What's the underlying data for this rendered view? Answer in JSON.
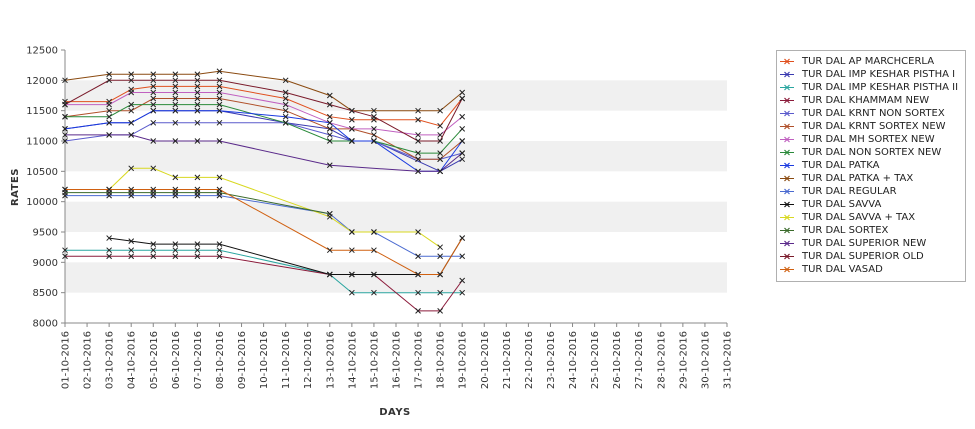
{
  "chart_data": {
    "type": "line",
    "title": "",
    "xlabel": "DAYS",
    "ylabel": "RATES",
    "ylim": [
      8000,
      12500
    ],
    "y_ticks": [
      8000,
      8500,
      9000,
      9500,
      10000,
      10500,
      11000,
      11500,
      12000,
      12500
    ],
    "grid": "alternating horizontal bands",
    "legend_position": "right",
    "categories": [
      "01-10-2016",
      "02-10-2016",
      "03-10-2016",
      "04-10-2016",
      "05-10-2016",
      "06-10-2016",
      "07-10-2016",
      "08-10-2016",
      "09-10-2016",
      "10-10-2016",
      "11-10-2016",
      "12-10-2016",
      "13-10-2016",
      "14-10-2016",
      "15-10-2016",
      "16-10-2016",
      "17-10-2016",
      "18-10-2016",
      "19-10-2016",
      "20-10-2016",
      "21-10-2016",
      "22-10-2016",
      "23-10-2016",
      "24-10-2016",
      "25-10-2016",
      "26-10-2016",
      "27-10-2016",
      "28-10-2016",
      "29-10-2016",
      "30-10-2016",
      "31-10-2016"
    ],
    "series": [
      {
        "name": "TUR DAL AP MARCHCERLA",
        "color": "#e0501e",
        "points": [
          [
            0,
            11650
          ],
          [
            2,
            11650
          ],
          [
            3,
            11850
          ],
          [
            4,
            11900
          ],
          [
            5,
            11900
          ],
          [
            6,
            11900
          ],
          [
            7,
            11900
          ],
          [
            10,
            11700
          ],
          [
            12,
            11400
          ],
          [
            13,
            11350
          ],
          [
            14,
            11350
          ],
          [
            16,
            11350
          ],
          [
            17,
            11250
          ],
          [
            18,
            11700
          ]
        ]
      },
      {
        "name": "TUR DAL IMP KESHAR PISTHA I",
        "color": "#3a3ab0",
        "points": [
          [
            0,
            11200
          ],
          [
            2,
            11300
          ],
          [
            3,
            11300
          ],
          [
            4,
            11500
          ],
          [
            5,
            11500
          ],
          [
            6,
            11500
          ],
          [
            7,
            11500
          ],
          [
            10,
            11300
          ],
          [
            12,
            11200
          ],
          [
            13,
            11000
          ],
          [
            14,
            11000
          ],
          [
            17,
            10500
          ],
          [
            18,
            10700
          ]
        ]
      },
      {
        "name": "TUR DAL IMP KESHAR PISTHA II",
        "color": "#2aa6a0",
        "points": [
          [
            0,
            9200
          ],
          [
            2,
            9200
          ],
          [
            3,
            9200
          ],
          [
            4,
            9200
          ],
          [
            5,
            9200
          ],
          [
            6,
            9200
          ],
          [
            7,
            9200
          ],
          [
            12,
            8800
          ],
          [
            13,
            8500
          ],
          [
            14,
            8500
          ],
          [
            16,
            8500
          ],
          [
            17,
            8500
          ],
          [
            18,
            8500
          ]
        ]
      },
      {
        "name": "TUR DAL KHAMMAM NEW",
        "color": "#8b1a3a",
        "points": [
          [
            0,
            9100
          ],
          [
            2,
            9100
          ],
          [
            3,
            9100
          ],
          [
            4,
            9100
          ],
          [
            5,
            9100
          ],
          [
            6,
            9100
          ],
          [
            7,
            9100
          ],
          [
            12,
            8800
          ],
          [
            13,
            8800
          ],
          [
            14,
            8800
          ],
          [
            16,
            8200
          ],
          [
            17,
            8200
          ],
          [
            18,
            8700
          ]
        ]
      },
      {
        "name": "TUR DAL KRNT NON SORTEX",
        "color": "#5a5acc",
        "points": [
          [
            0,
            11000
          ],
          [
            2,
            11100
          ],
          [
            3,
            11100
          ],
          [
            4,
            11300
          ],
          [
            5,
            11300
          ],
          [
            6,
            11300
          ],
          [
            7,
            11300
          ],
          [
            10,
            11300
          ],
          [
            12,
            11100
          ],
          [
            13,
            11000
          ],
          [
            14,
            11000
          ],
          [
            16,
            10700
          ],
          [
            17,
            10700
          ],
          [
            18,
            10800
          ]
        ]
      },
      {
        "name": "TUR DAL KRNT SORTEX NEW",
        "color": "#b0502a",
        "points": [
          [
            0,
            11400
          ],
          [
            2,
            11500
          ],
          [
            3,
            11500
          ],
          [
            4,
            11700
          ],
          [
            5,
            11700
          ],
          [
            6,
            11700
          ],
          [
            7,
            11700
          ],
          [
            10,
            11500
          ],
          [
            12,
            11200
          ],
          [
            13,
            11200
          ],
          [
            14,
            11100
          ],
          [
            16,
            10700
          ],
          [
            17,
            10700
          ],
          [
            18,
            11000
          ]
        ]
      },
      {
        "name": "TUR DAL MH SORTEX NEW",
        "color": "#c060c0",
        "points": [
          [
            0,
            11600
          ],
          [
            2,
            11600
          ],
          [
            3,
            11800
          ],
          [
            4,
            11800
          ],
          [
            5,
            11800
          ],
          [
            6,
            11800
          ],
          [
            7,
            11800
          ],
          [
            10,
            11600
          ],
          [
            12,
            11300
          ],
          [
            13,
            11200
          ],
          [
            14,
            11200
          ],
          [
            16,
            11100
          ],
          [
            17,
            11100
          ],
          [
            18,
            11400
          ]
        ]
      },
      {
        "name": "TUR DAL NON SORTEX NEW",
        "color": "#2a8a3a",
        "points": [
          [
            0,
            11400
          ],
          [
            2,
            11400
          ],
          [
            3,
            11600
          ],
          [
            4,
            11600
          ],
          [
            5,
            11600
          ],
          [
            6,
            11600
          ],
          [
            7,
            11600
          ],
          [
            10,
            11300
          ],
          [
            12,
            11000
          ],
          [
            13,
            11000
          ],
          [
            14,
            11000
          ],
          [
            16,
            10800
          ],
          [
            17,
            10800
          ],
          [
            18,
            11200
          ]
        ]
      },
      {
        "name": "TUR DAL PATKA",
        "color": "#1a3ae0",
        "points": [
          [
            0,
            11200
          ],
          [
            2,
            11300
          ],
          [
            3,
            11300
          ],
          [
            4,
            11500
          ],
          [
            5,
            11500
          ],
          [
            6,
            11500
          ],
          [
            7,
            11500
          ],
          [
            10,
            11400
          ],
          [
            12,
            11300
          ],
          [
            13,
            11000
          ],
          [
            14,
            11000
          ],
          [
            16,
            10500
          ],
          [
            17,
            10500
          ],
          [
            18,
            11000
          ]
        ]
      },
      {
        "name": "TUR DAL PATKA + TAX",
        "color": "#8a4a10",
        "points": [
          [
            0,
            12000
          ],
          [
            2,
            12100
          ],
          [
            3,
            12100
          ],
          [
            4,
            12100
          ],
          [
            5,
            12100
          ],
          [
            6,
            12100
          ],
          [
            7,
            12150
          ],
          [
            10,
            12000
          ],
          [
            12,
            11750
          ],
          [
            13,
            11500
          ],
          [
            14,
            11500
          ],
          [
            16,
            11500
          ],
          [
            17,
            11500
          ],
          [
            18,
            11800
          ]
        ]
      },
      {
        "name": "TUR DAL REGULAR",
        "color": "#4a6ad0",
        "points": [
          [
            0,
            10100
          ],
          [
            2,
            10100
          ],
          [
            3,
            10100
          ],
          [
            4,
            10100
          ],
          [
            5,
            10100
          ],
          [
            6,
            10100
          ],
          [
            7,
            10100
          ],
          [
            12,
            9800
          ],
          [
            13,
            9500
          ],
          [
            14,
            9500
          ],
          [
            16,
            9100
          ],
          [
            17,
            9100
          ],
          [
            18,
            9100
          ]
        ]
      },
      {
        "name": "TUR DAL SAVVA",
        "color": "#111111",
        "points": [
          [
            2,
            9400
          ],
          [
            3,
            9350
          ],
          [
            4,
            9300
          ],
          [
            5,
            9300
          ],
          [
            6,
            9300
          ],
          [
            7,
            9300
          ],
          [
            12,
            8800
          ],
          [
            13,
            8800
          ],
          [
            14,
            8800
          ],
          [
            16,
            8800
          ],
          [
            17,
            8800
          ],
          [
            18,
            9400
          ]
        ]
      },
      {
        "name": "TUR DAL SAVVA + TAX",
        "color": "#d8d820",
        "points": [
          [
            0,
            10200
          ],
          [
            2,
            10200
          ],
          [
            3,
            10550
          ],
          [
            4,
            10550
          ],
          [
            5,
            10400
          ],
          [
            6,
            10400
          ],
          [
            7,
            10400
          ],
          [
            12,
            9750
          ],
          [
            13,
            9500
          ],
          [
            14,
            9500
          ],
          [
            16,
            9500
          ],
          [
            17,
            9250
          ]
        ]
      },
      {
        "name": "TUR DAL SORTEX",
        "color": "#3a6a2a",
        "points": [
          [
            0,
            10150
          ],
          [
            2,
            10150
          ],
          [
            3,
            10150
          ],
          [
            4,
            10150
          ],
          [
            5,
            10150
          ],
          [
            6,
            10150
          ],
          [
            7,
            10150
          ],
          [
            12,
            9800
          ]
        ]
      },
      {
        "name": "TUR DAL SUPERIOR NEW",
        "color": "#5a2a8a",
        "points": [
          [
            0,
            11100
          ],
          [
            2,
            11100
          ],
          [
            3,
            11100
          ],
          [
            4,
            11000
          ],
          [
            5,
            11000
          ],
          [
            6,
            11000
          ],
          [
            7,
            11000
          ],
          [
            12,
            10600
          ],
          [
            16,
            10500
          ],
          [
            17,
            10500
          ],
          [
            18,
            10800
          ]
        ]
      },
      {
        "name": "TUR DAL SUPERIOR OLD",
        "color": "#7a1a2a",
        "points": [
          [
            0,
            11600
          ],
          [
            2,
            12000
          ],
          [
            3,
            12000
          ],
          [
            4,
            12000
          ],
          [
            5,
            12000
          ],
          [
            6,
            12000
          ],
          [
            7,
            12000
          ],
          [
            10,
            11800
          ],
          [
            12,
            11600
          ],
          [
            13,
            11500
          ],
          [
            14,
            11400
          ],
          [
            16,
            11000
          ],
          [
            17,
            11000
          ],
          [
            18,
            11700
          ]
        ]
      },
      {
        "name": "TUR DAL VASAD",
        "color": "#d06010",
        "points": [
          [
            0,
            10200
          ],
          [
            2,
            10200
          ],
          [
            3,
            10200
          ],
          [
            4,
            10200
          ],
          [
            5,
            10200
          ],
          [
            6,
            10200
          ],
          [
            7,
            10200
          ],
          [
            12,
            9200
          ],
          [
            13,
            9200
          ],
          [
            14,
            9200
          ],
          [
            16,
            8800
          ],
          [
            17,
            8800
          ],
          [
            18,
            9400
          ]
        ]
      }
    ]
  }
}
